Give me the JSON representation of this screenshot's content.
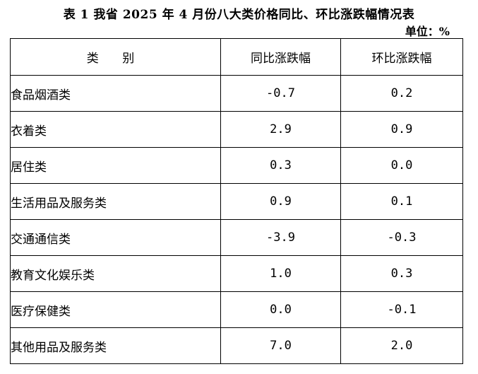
{
  "title": "表 1  我省 2025 年 4 月份八大类价格同比、环比涨跌幅情况表",
  "unit": "单位：%",
  "table": {
    "headers": [
      "类 别",
      "同比涨跌幅",
      "环比涨跌幅"
    ],
    "rows": [
      {
        "category": "食品烟酒类",
        "yoy": "-0.7",
        "mom": "0.2"
      },
      {
        "category": "衣着类",
        "yoy": "2.9",
        "mom": "0.9"
      },
      {
        "category": "居住类",
        "yoy": "0.3",
        "mom": "0.0"
      },
      {
        "category": "生活用品及服务类",
        "yoy": "0.9",
        "mom": "0.1"
      },
      {
        "category": "交通通信类",
        "yoy": "-3.9",
        "mom": "-0.3"
      },
      {
        "category": "教育文化娱乐类",
        "yoy": "1.0",
        "mom": "0.3"
      },
      {
        "category": "医疗保健类",
        "yoy": "0.0",
        "mom": "-0.1"
      },
      {
        "category": "其他用品及服务类",
        "yoy": "7.0",
        "mom": "2.0"
      }
    ]
  }
}
